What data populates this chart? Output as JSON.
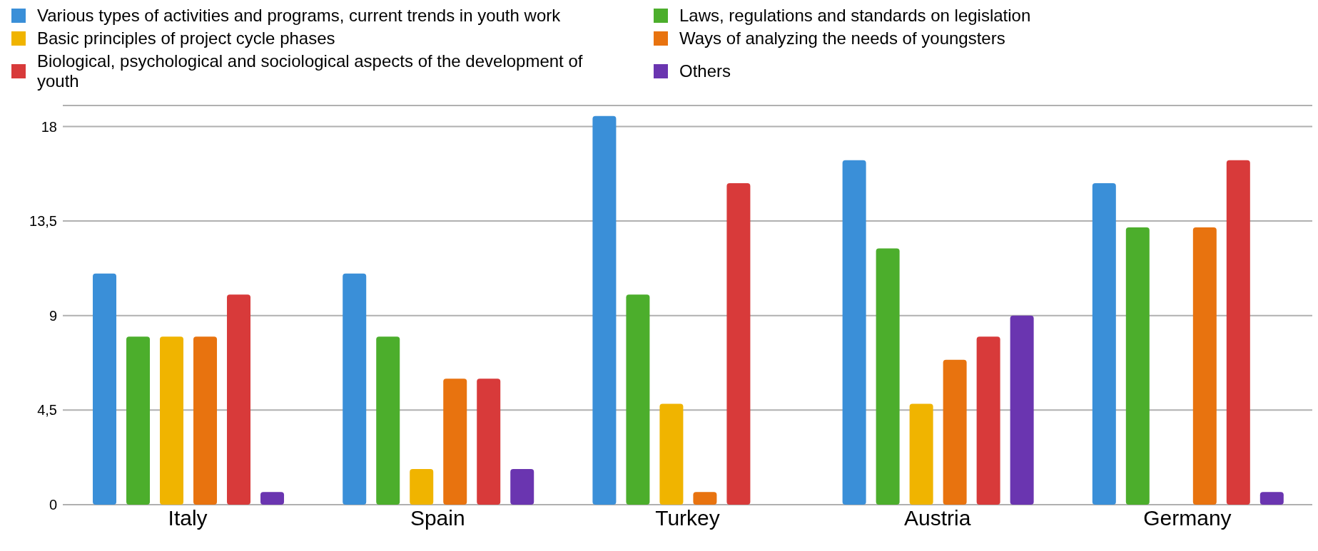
{
  "chart_data": {
    "type": "bar",
    "categories": [
      "Italy",
      "Spain",
      "Turkey",
      "Austria",
      "Germany"
    ],
    "series": [
      {
        "name": "Various types of activities and programs, current trends in youth work",
        "color": "#3a8fd8",
        "values": [
          11,
          11,
          18.5,
          16.4,
          15.3
        ]
      },
      {
        "name": "Basic principles of project cycle phases",
        "color": "#f0b400",
        "values": [
          8,
          1.7,
          4.8,
          4.8,
          null
        ]
      },
      {
        "name": "Biological, psychological and sociological aspects of the development of youth",
        "color": "#d83a3a",
        "values": [
          10,
          6,
          15.3,
          8,
          16.4
        ]
      },
      {
        "name": "Laws, regulations and standards on legislation",
        "color": "#4cae2c",
        "values": [
          8,
          8,
          10,
          12.2,
          13.2
        ]
      },
      {
        "name": "Ways of analyzing the needs of youngsters",
        "color": "#e8730f",
        "values": [
          8,
          6,
          0.6,
          6.9,
          13.2
        ]
      },
      {
        "name": "Others",
        "color": "#6a35b0",
        "values": [
          0.6,
          1.7,
          null,
          9,
          0.6
        ]
      }
    ],
    "ylim": [
      0,
      19
    ],
    "yticks": [
      0,
      {
        "value": 4.5,
        "label": "4,5"
      },
      9,
      {
        "value": 13.5,
        "label": "13,5"
      },
      18
    ],
    "grid": "y",
    "legend": "top"
  }
}
